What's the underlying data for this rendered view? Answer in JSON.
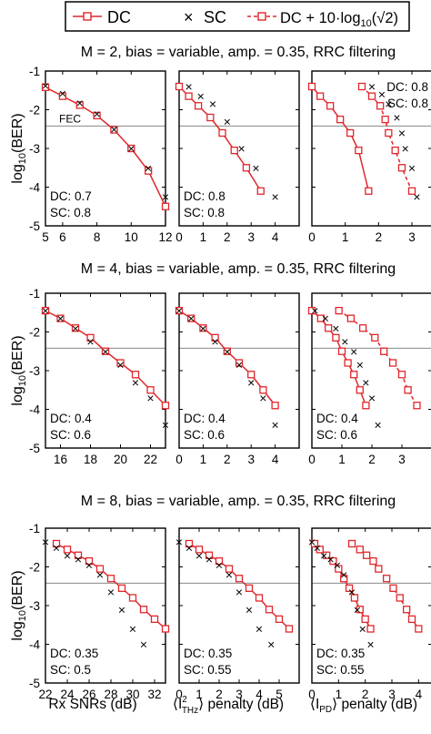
{
  "legend": {
    "dc_label": "DC",
    "sc_label": "SC",
    "dc_shift_label_main": "DC + 10·log",
    "dc_shift_label_sub": "10",
    "dc_shift_label_tail": "(√2)"
  },
  "colors": {
    "dc": "#e0262b",
    "sc": "#555555",
    "frame": "#000000",
    "fec_line": "#888888"
  },
  "fec_label": "FEC",
  "y_axis_label_main": "log",
  "y_axis_label_sub": "10",
  "y_axis_label_tail": "(BER)",
  "x_axis_labels": {
    "col1": "Rx SNRs (dB)",
    "col2_pre": "⟨I",
    "col2_sup": "2",
    "col2_sub": "THz",
    "col2_post": "⟩ penalty (dB)",
    "col3_pre": "⟨I",
    "col3_sub": "PD",
    "col3_post": "⟩ penalty (dB)"
  },
  "chart_data": [
    {
      "type": "line",
      "title": "M = 2, bias = variable, amp. = 0.35, RRC filtering",
      "ylim": [
        -5,
        -1
      ],
      "yticks": [
        "-1",
        "-2",
        "-3",
        "-4",
        "-5"
      ],
      "fec_level": -2.42,
      "panels": [
        {
          "xlim": [
            5,
            12
          ],
          "xticks": [
            5,
            6,
            8,
            10,
            12
          ],
          "xticklabels": [
            "5",
            "6",
            "8",
            "10",
            "12"
          ],
          "annotation": [
            "DC: 0.7",
            "SC: 0.8"
          ],
          "annotation_pos": "bottom-left",
          "show_fec_label": true,
          "series": [
            {
              "name": "DC",
              "style": "dc",
              "x": [
                5,
                6,
                7,
                8,
                9,
                10,
                11,
                12
              ],
              "y": [
                -1.42,
                -1.65,
                -1.88,
                -2.15,
                -2.52,
                -3.0,
                -3.58,
                -4.5
              ]
            },
            {
              "name": "SC",
              "style": "sc",
              "x": [
                5,
                6,
                7,
                8,
                9,
                10,
                11,
                12
              ],
              "y": [
                -1.38,
                -1.58,
                -1.82,
                -2.1,
                -2.5,
                -3.0,
                -3.5,
                -4.25
              ]
            }
          ]
        },
        {
          "xlim": [
            0,
            5
          ],
          "xticks": [
            0,
            1,
            2,
            3,
            4
          ],
          "xticklabels": [
            "0",
            "1",
            "2",
            "3",
            "4"
          ],
          "annotation": [
            "DC: 0.8",
            "SC: 0.8"
          ],
          "annotation_pos": "bottom-left",
          "series": [
            {
              "name": "DC",
              "style": "dc",
              "x": [
                0,
                0.4,
                0.8,
                1.3,
                1.8,
                2.3,
                2.8,
                3.4
              ],
              "y": [
                -1.4,
                -1.65,
                -1.9,
                -2.2,
                -2.6,
                -3.05,
                -3.5,
                -4.1
              ]
            },
            {
              "name": "SC",
              "style": "sc",
              "x": [
                0.4,
                0.9,
                1.4,
                2.0,
                2.6,
                3.2,
                4.0
              ],
              "y": [
                -1.4,
                -1.65,
                -1.85,
                -2.3,
                -3.0,
                -3.5,
                -4.25
              ]
            }
          ]
        },
        {
          "xlim": [
            0,
            3.6
          ],
          "xticks": [
            0,
            1,
            2,
            3
          ],
          "xticklabels": [
            "0",
            "1",
            "2",
            "3"
          ],
          "annotation": [
            "DC: 0.8",
            "SC: 0.8"
          ],
          "annotation_pos": "top-right",
          "series": [
            {
              "name": "DC",
              "style": "dc",
              "x": [
                0,
                0.25,
                0.55,
                0.85,
                1.15,
                1.4,
                1.7
              ],
              "y": [
                -1.4,
                -1.65,
                -1.9,
                -2.25,
                -2.6,
                -3.05,
                -4.1
              ]
            },
            {
              "name": "SC",
              "style": "sc",
              "x": [
                1.8,
                2.1,
                2.3,
                2.55,
                2.7,
                2.8,
                3.0,
                3.15
              ],
              "y": [
                -1.4,
                -1.6,
                -1.85,
                -2.2,
                -2.6,
                -3.0,
                -3.5,
                -4.25
              ]
            },
            {
              "name": "DC + 10·log10(√2)",
              "style": "dc-dashed",
              "x": [
                1.5,
                1.8,
                2.05,
                2.2,
                2.3,
                2.5,
                2.7,
                3.0
              ],
              "y": [
                -1.4,
                -1.65,
                -1.9,
                -2.25,
                -2.6,
                -3.05,
                -3.5,
                -4.1
              ]
            }
          ]
        }
      ]
    },
    {
      "type": "line",
      "title": "M = 4, bias = variable, amp. = 0.35, RRC filtering",
      "ylim": [
        -5,
        -1
      ],
      "yticks": [
        "-1",
        "-2",
        "-3",
        "-4",
        "-5"
      ],
      "fec_level": -2.42,
      "panels": [
        {
          "xlim": [
            15,
            23
          ],
          "xticks": [
            16,
            18,
            20,
            22
          ],
          "xticklabels": [
            "16",
            "18",
            "20",
            "22"
          ],
          "annotation": [
            "DC: 0.4",
            "SC: 0.6"
          ],
          "annotation_pos": "bottom-left",
          "series": [
            {
              "name": "DC",
              "style": "dc",
              "x": [
                15,
                16,
                17,
                18,
                19,
                20,
                21,
                22,
                23
              ],
              "y": [
                -1.45,
                -1.65,
                -1.9,
                -2.15,
                -2.5,
                -2.8,
                -3.1,
                -3.5,
                -3.9
              ]
            },
            {
              "name": "SC",
              "style": "sc",
              "x": [
                15,
                16,
                17,
                18,
                19,
                20,
                21,
                22,
                23
              ],
              "y": [
                -1.45,
                -1.65,
                -1.9,
                -2.25,
                -2.5,
                -2.85,
                -3.3,
                -3.7,
                -4.4
              ]
            }
          ]
        },
        {
          "xlim": [
            0,
            5
          ],
          "xticks": [
            0,
            1,
            2,
            3,
            4
          ],
          "xticklabels": [
            "0",
            "1",
            "2",
            "3",
            "4"
          ],
          "annotation": [
            "DC: 0.4",
            "SC: 0.6"
          ],
          "annotation_pos": "bottom-left",
          "series": [
            {
              "name": "DC",
              "style": "dc",
              "x": [
                0,
                0.5,
                1.0,
                1.5,
                2.0,
                2.5,
                3.0,
                3.5,
                4.0
              ],
              "y": [
                -1.45,
                -1.65,
                -1.9,
                -2.15,
                -2.5,
                -2.8,
                -3.1,
                -3.5,
                -3.9
              ]
            },
            {
              "name": "SC",
              "style": "sc",
              "x": [
                0,
                0.5,
                1.0,
                1.5,
                2.0,
                2.5,
                3.0,
                3.5,
                4.0
              ],
              "y": [
                -1.45,
                -1.65,
                -1.9,
                -2.25,
                -2.5,
                -2.85,
                -3.3,
                -3.7,
                -4.4
              ]
            }
          ]
        },
        {
          "xlim": [
            0,
            4
          ],
          "xticks": [
            0,
            1,
            2,
            3
          ],
          "xticklabels": [
            "0",
            "1",
            "2",
            "3"
          ],
          "annotation": [
            "DC: 0.4",
            "SC: 0.6"
          ],
          "annotation_pos": "bottom-left",
          "series": [
            {
              "name": "DC",
              "style": "dc",
              "x": [
                0,
                0.3,
                0.55,
                0.8,
                1.0,
                1.2,
                1.4,
                1.6,
                1.8
              ],
              "y": [
                -1.45,
                -1.65,
                -1.9,
                -2.15,
                -2.5,
                -2.8,
                -3.1,
                -3.5,
                -3.9
              ]
            },
            {
              "name": "SC",
              "style": "sc",
              "x": [
                0.1,
                0.45,
                0.8,
                1.1,
                1.4,
                1.6,
                1.8,
                2.0,
                2.2
              ],
              "y": [
                -1.45,
                -1.65,
                -1.9,
                -2.25,
                -2.5,
                -2.85,
                -3.3,
                -3.7,
                -4.4
              ]
            },
            {
              "name": "DC + 10·log10(√2)",
              "style": "dc-dashed",
              "x": [
                0.9,
                1.3,
                1.7,
                2.1,
                2.4,
                2.7,
                3.0,
                3.2,
                3.5
              ],
              "y": [
                -1.45,
                -1.65,
                -1.9,
                -2.15,
                -2.5,
                -2.8,
                -3.1,
                -3.5,
                -3.9
              ]
            }
          ]
        }
      ]
    },
    {
      "type": "line",
      "title": "M = 8, bias = variable, amp. = 0.35, RRC filtering",
      "ylim": [
        -5,
        -1
      ],
      "yticks": [
        "-1",
        "-2",
        "-3",
        "-4",
        "-5"
      ],
      "fec_level": -2.42,
      "panels": [
        {
          "xlim": [
            22,
            33
          ],
          "xticks": [
            22,
            24,
            26,
            28,
            30,
            32
          ],
          "xticklabels": [
            "22",
            "24",
            "26",
            "28",
            "30",
            "32"
          ],
          "annotation": [
            "DC: 0.35",
            "SC: 0.5"
          ],
          "annotation_pos": "bottom-left",
          "series": [
            {
              "name": "DC",
              "style": "dc",
              "x": [
                23,
                24,
                25,
                26,
                27,
                28,
                29,
                30,
                31,
                32,
                33
              ],
              "y": [
                -1.4,
                -1.55,
                -1.7,
                -1.85,
                -2.05,
                -2.3,
                -2.55,
                -2.8,
                -3.1,
                -3.35,
                -3.6
              ]
            },
            {
              "name": "SC",
              "style": "sc",
              "x": [
                22,
                23,
                24,
                25,
                26,
                27,
                28,
                29,
                30,
                31
              ],
              "y": [
                -1.35,
                -1.5,
                -1.7,
                -1.8,
                -1.95,
                -2.2,
                -2.65,
                -3.1,
                -3.6,
                -4.0
              ]
            }
          ]
        },
        {
          "xlim": [
            0,
            6
          ],
          "xticks": [
            0,
            1,
            2,
            3,
            4,
            5
          ],
          "xticklabels": [
            "0",
            "1",
            "2",
            "3",
            "4",
            "5"
          ],
          "annotation": [
            "DC: 0.35",
            "SC: 0.55"
          ],
          "annotation_pos": "bottom-left",
          "series": [
            {
              "name": "DC",
              "style": "dc",
              "x": [
                0.5,
                1.0,
                1.5,
                2.0,
                2.5,
                3.0,
                3.5,
                4.0,
                4.5,
                5.0,
                5.5
              ],
              "y": [
                -1.4,
                -1.55,
                -1.7,
                -1.85,
                -2.05,
                -2.3,
                -2.55,
                -2.8,
                -3.1,
                -3.35,
                -3.6
              ]
            },
            {
              "name": "SC",
              "style": "sc",
              "x": [
                0,
                0.5,
                1.0,
                1.5,
                2.0,
                2.5,
                3.0,
                3.5,
                4.0,
                4.6
              ],
              "y": [
                -1.35,
                -1.5,
                -1.7,
                -1.8,
                -1.95,
                -2.2,
                -2.65,
                -3.1,
                -3.6,
                -4.0
              ]
            }
          ]
        },
        {
          "xlim": [
            0,
            4.5
          ],
          "xticks": [
            0,
            1,
            2,
            3,
            4
          ],
          "xticklabels": [
            "0",
            "1",
            "2",
            "3",
            "4"
          ],
          "annotation": [
            "DC: 0.35",
            "SC: 0.55"
          ],
          "annotation_pos": "bottom-left",
          "series": [
            {
              "name": "DC",
              "style": "dc",
              "x": [
                0.1,
                0.3,
                0.55,
                0.8,
                1.0,
                1.2,
                1.4,
                1.6,
                1.8,
                2.0,
                2.2
              ],
              "y": [
                -1.4,
                -1.55,
                -1.7,
                -1.85,
                -2.05,
                -2.3,
                -2.55,
                -2.8,
                -3.1,
                -3.35,
                -3.6
              ]
            },
            {
              "name": "SC",
              "style": "sc",
              "x": [
                0,
                0.2,
                0.45,
                0.7,
                0.95,
                1.2,
                1.5,
                1.7,
                1.9,
                2.2
              ],
              "y": [
                -1.35,
                -1.5,
                -1.7,
                -1.8,
                -1.95,
                -2.2,
                -2.65,
                -3.1,
                -3.6,
                -4.0
              ]
            },
            {
              "name": "DC + 10·log10(√2)",
              "style": "dc-dashed",
              "x": [
                1.5,
                1.8,
                2.05,
                2.3,
                2.5,
                2.8,
                3.05,
                3.3,
                3.55,
                3.75,
                4.0
              ],
              "y": [
                -1.4,
                -1.55,
                -1.7,
                -1.85,
                -2.05,
                -2.3,
                -2.55,
                -2.8,
                -3.1,
                -3.35,
                -3.6
              ]
            }
          ]
        }
      ]
    }
  ]
}
